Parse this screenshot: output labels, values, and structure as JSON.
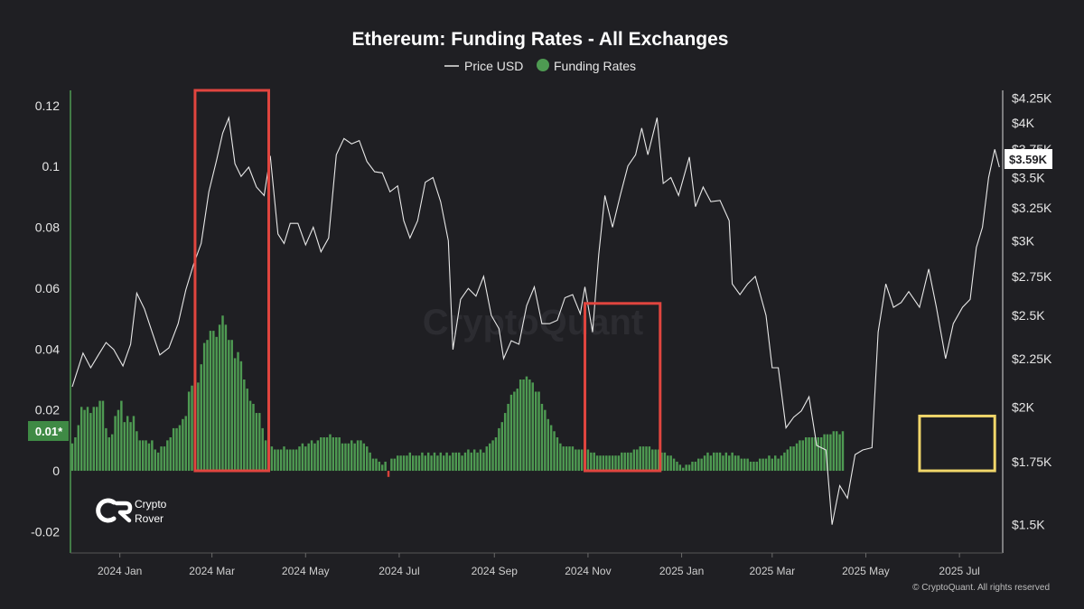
{
  "colors": {
    "background": "#1f1f23",
    "funding_positive": "#4e9a52",
    "funding_negative": "#d9413a",
    "price_line": "#e8e8e8",
    "highlight_red": "#e0453f",
    "highlight_yellow": "#f0d66a",
    "price_badge_bg": "#ffffff",
    "funding_badge_bg": "#3f8a45"
  },
  "brand": {
    "logo_icon": "crypto-rover-logo-icon",
    "line1": "Crypto",
    "line2": "Rover"
  },
  "watermark": "CryptoQuant",
  "copyright": "© CryptoQuant. All rights reserved",
  "badges": {
    "price": "$3.59K",
    "funding": "0.01*"
  },
  "chart_data": {
    "type": "bar",
    "title": "Ethereum: Funding Rates - All Exchanges",
    "legend": [
      {
        "name": "Price USD",
        "kind": "line"
      },
      {
        "name": "Funding Rates",
        "kind": "dot"
      }
    ],
    "legend_position": "top-center",
    "grid": false,
    "x_axis": {
      "type": "date",
      "range": [
        "2023-12-01",
        "2025-07-28"
      ],
      "ticks": [
        {
          "date": "2024-01-01",
          "label": "2024 Jan"
        },
        {
          "date": "2024-03-01",
          "label": "2024 Mar"
        },
        {
          "date": "2024-05-01",
          "label": "2024 May"
        },
        {
          "date": "2024-07-01",
          "label": "2024 Jul"
        },
        {
          "date": "2024-09-01",
          "label": "2024 Sep"
        },
        {
          "date": "2024-11-01",
          "label": "2024 Nov"
        },
        {
          "date": "2025-01-01",
          "label": "2025 Jan"
        },
        {
          "date": "2025-03-01",
          "label": "2025 Mar"
        },
        {
          "date": "2025-05-01",
          "label": "2025 May"
        },
        {
          "date": "2025-07-01",
          "label": "2025 Jul"
        }
      ]
    },
    "y_left": {
      "range": [
        -0.027,
        0.125
      ],
      "ticks": [
        {
          "value": 0.12,
          "label": "0.12"
        },
        {
          "value": 0.1,
          "label": "0.1"
        },
        {
          "value": 0.08,
          "label": "0.08"
        },
        {
          "value": 0.06,
          "label": "0.06"
        },
        {
          "value": 0.04,
          "label": "0.04"
        },
        {
          "value": 0.02,
          "label": "0.02"
        },
        {
          "value": 0,
          "label": "0"
        },
        {
          "value": -0.02,
          "label": "-0.02"
        }
      ]
    },
    "y_right": {
      "scale": "log",
      "range": [
        1400,
        4330
      ],
      "ticks": [
        {
          "value": 4250,
          "label": "$4.25K"
        },
        {
          "value": 4000,
          "label": "$4K"
        },
        {
          "value": 3750,
          "label": "$3.75K"
        },
        {
          "value": 3500,
          "label": "$3.5K"
        },
        {
          "value": 3250,
          "label": "$3.25K"
        },
        {
          "value": 3000,
          "label": "$3K"
        },
        {
          "value": 2750,
          "label": "$2.75K"
        },
        {
          "value": 2500,
          "label": "$2.5K"
        },
        {
          "value": 2250,
          "label": "$2.25K"
        },
        {
          "value": 2000,
          "label": "$2K"
        },
        {
          "value": 1750,
          "label": "$1.75K"
        },
        {
          "value": 1500,
          "label": "$1.5K"
        }
      ]
    },
    "funding_series": {
      "name": "Funding Rates",
      "interval_days": 2,
      "start": "2023-12-01",
      "values": [
        0.009,
        0.011,
        0.015,
        0.021,
        0.02,
        0.021,
        0.019,
        0.021,
        0.021,
        0.023,
        0.023,
        0.014,
        0.011,
        0.012,
        0.018,
        0.02,
        0.023,
        0.016,
        0.018,
        0.016,
        0.018,
        0.013,
        0.01,
        0.01,
        0.01,
        0.009,
        0.01,
        0.007,
        0.006,
        0.008,
        0.008,
        0.01,
        0.011,
        0.014,
        0.014,
        0.015,
        0.017,
        0.018,
        0.026,
        0.028,
        0.029,
        0.029,
        0.035,
        0.042,
        0.043,
        0.046,
        0.046,
        0.044,
        0.048,
        0.051,
        0.048,
        0.043,
        0.043,
        0.037,
        0.039,
        0.036,
        0.03,
        0.027,
        0.023,
        0.022,
        0.019,
        0.019,
        0.014,
        0.01,
        0.01,
        0.008,
        0.007,
        0.007,
        0.007,
        0.008,
        0.007,
        0.007,
        0.007,
        0.007,
        0.008,
        0.009,
        0.008,
        0.009,
        0.01,
        0.009,
        0.01,
        0.011,
        0.011,
        0.011,
        0.012,
        0.011,
        0.011,
        0.011,
        0.009,
        0.009,
        0.009,
        0.01,
        0.009,
        0.01,
        0.01,
        0.009,
        0.008,
        0.006,
        0.004,
        0.004,
        0.003,
        0.002,
        0.003,
        -0.002,
        0.004,
        0.004,
        0.005,
        0.005,
        0.005,
        0.005,
        0.006,
        0.005,
        0.005,
        0.005,
        0.006,
        0.005,
        0.006,
        0.005,
        0.006,
        0.005,
        0.006,
        0.005,
        0.006,
        0.005,
        0.006,
        0.006,
        0.006,
        0.005,
        0.006,
        0.007,
        0.006,
        0.007,
        0.006,
        0.007,
        0.006,
        0.008,
        0.009,
        0.01,
        0.011,
        0.014,
        0.016,
        0.019,
        0.022,
        0.025,
        0.026,
        0.027,
        0.03,
        0.03,
        0.031,
        0.03,
        0.029,
        0.026,
        0.026,
        0.022,
        0.02,
        0.017,
        0.015,
        0.013,
        0.011,
        0.009,
        0.008,
        0.008,
        0.008,
        0.008,
        0.007,
        0.007,
        0.007,
        0.007,
        0.007,
        0.006,
        0.006,
        0.005,
        0.005,
        0.005,
        0.005,
        0.005,
        0.005,
        0.005,
        0.005,
        0.006,
        0.006,
        0.006,
        0.006,
        0.007,
        0.007,
        0.008,
        0.008,
        0.008,
        0.008,
        0.007,
        0.007,
        0.007,
        0.006,
        0.006,
        0.005,
        0.005,
        0.004,
        0.003,
        0.002,
        0.001,
        0.002,
        0.002,
        0.003,
        0.003,
        0.004,
        0.004,
        0.005,
        0.006,
        0.005,
        0.006,
        0.006,
        0.006,
        0.005,
        0.006,
        0.005,
        0.006,
        0.005,
        0.005,
        0.004,
        0.004,
        0.004,
        0.003,
        0.003,
        0.003,
        0.004,
        0.004,
        0.004,
        0.005,
        0.004,
        0.005,
        0.004,
        0.005,
        0.006,
        0.007,
        0.008,
        0.008,
        0.009,
        0.01,
        0.01,
        0.011,
        0.011,
        0.011,
        0.011,
        0.011,
        0.011,
        0.012,
        0.012,
        0.012,
        0.013,
        0.013,
        0.012,
        0.013
      ]
    },
    "price_series": {
      "name": "Price USD",
      "points": [
        {
          "x": "2023-12-01",
          "y": 2100
        },
        {
          "x": "2023-12-08",
          "y": 2280
        },
        {
          "x": "2023-12-13",
          "y": 2200
        },
        {
          "x": "2023-12-18",
          "y": 2270
        },
        {
          "x": "2023-12-23",
          "y": 2340
        },
        {
          "x": "2023-12-28",
          "y": 2300
        },
        {
          "x": "2024-01-03",
          "y": 2210
        },
        {
          "x": "2024-01-08",
          "y": 2330
        },
        {
          "x": "2024-01-12",
          "y": 2640
        },
        {
          "x": "2024-01-17",
          "y": 2540
        },
        {
          "x": "2024-01-22",
          "y": 2400
        },
        {
          "x": "2024-01-27",
          "y": 2270
        },
        {
          "x": "2024-02-02",
          "y": 2310
        },
        {
          "x": "2024-02-08",
          "y": 2450
        },
        {
          "x": "2024-02-13",
          "y": 2660
        },
        {
          "x": "2024-02-18",
          "y": 2830
        },
        {
          "x": "2024-02-23",
          "y": 2980
        },
        {
          "x": "2024-02-28",
          "y": 3380
        },
        {
          "x": "2024-03-04",
          "y": 3650
        },
        {
          "x": "2024-03-08",
          "y": 3900
        },
        {
          "x": "2024-03-12",
          "y": 4050
        },
        {
          "x": "2024-03-16",
          "y": 3620
        },
        {
          "x": "2024-03-20",
          "y": 3510
        },
        {
          "x": "2024-03-25",
          "y": 3590
        },
        {
          "x": "2024-03-30",
          "y": 3420
        },
        {
          "x": "2024-04-04",
          "y": 3350
        },
        {
          "x": "2024-04-08",
          "y": 3690
        },
        {
          "x": "2024-04-13",
          "y": 3050
        },
        {
          "x": "2024-04-17",
          "y": 2980
        },
        {
          "x": "2024-04-21",
          "y": 3130
        },
        {
          "x": "2024-04-26",
          "y": 3130
        },
        {
          "x": "2024-05-01",
          "y": 2970
        },
        {
          "x": "2024-05-06",
          "y": 3100
        },
        {
          "x": "2024-05-11",
          "y": 2920
        },
        {
          "x": "2024-05-16",
          "y": 3020
        },
        {
          "x": "2024-05-21",
          "y": 3700
        },
        {
          "x": "2024-05-26",
          "y": 3850
        },
        {
          "x": "2024-05-31",
          "y": 3800
        },
        {
          "x": "2024-06-05",
          "y": 3830
        },
        {
          "x": "2024-06-10",
          "y": 3640
        },
        {
          "x": "2024-06-15",
          "y": 3550
        },
        {
          "x": "2024-06-20",
          "y": 3540
        },
        {
          "x": "2024-06-25",
          "y": 3380
        },
        {
          "x": "2024-06-30",
          "y": 3430
        },
        {
          "x": "2024-07-04",
          "y": 3150
        },
        {
          "x": "2024-07-08",
          "y": 3020
        },
        {
          "x": "2024-07-13",
          "y": 3150
        },
        {
          "x": "2024-07-18",
          "y": 3460
        },
        {
          "x": "2024-07-23",
          "y": 3500
        },
        {
          "x": "2024-07-28",
          "y": 3300
        },
        {
          "x": "2024-08-02",
          "y": 3000
        },
        {
          "x": "2024-08-05",
          "y": 2300
        },
        {
          "x": "2024-08-10",
          "y": 2600
        },
        {
          "x": "2024-08-15",
          "y": 2670
        },
        {
          "x": "2024-08-20",
          "y": 2620
        },
        {
          "x": "2024-08-25",
          "y": 2750
        },
        {
          "x": "2024-08-30",
          "y": 2500
        },
        {
          "x": "2024-09-04",
          "y": 2420
        },
        {
          "x": "2024-09-07",
          "y": 2250
        },
        {
          "x": "2024-09-12",
          "y": 2350
        },
        {
          "x": "2024-09-17",
          "y": 2330
        },
        {
          "x": "2024-09-22",
          "y": 2560
        },
        {
          "x": "2024-09-27",
          "y": 2680
        },
        {
          "x": "2024-10-02",
          "y": 2450
        },
        {
          "x": "2024-10-07",
          "y": 2450
        },
        {
          "x": "2024-10-12",
          "y": 2470
        },
        {
          "x": "2024-10-17",
          "y": 2610
        },
        {
          "x": "2024-10-22",
          "y": 2630
        },
        {
          "x": "2024-10-27",
          "y": 2510
        },
        {
          "x": "2024-10-30",
          "y": 2680
        },
        {
          "x": "2024-11-04",
          "y": 2400
        },
        {
          "x": "2024-11-08",
          "y": 2900
        },
        {
          "x": "2024-11-12",
          "y": 3350
        },
        {
          "x": "2024-11-17",
          "y": 3100
        },
        {
          "x": "2024-11-22",
          "y": 3350
        },
        {
          "x": "2024-11-27",
          "y": 3600
        },
        {
          "x": "2024-12-02",
          "y": 3700
        },
        {
          "x": "2024-12-06",
          "y": 3950
        },
        {
          "x": "2024-12-10",
          "y": 3700
        },
        {
          "x": "2024-12-16",
          "y": 4050
        },
        {
          "x": "2024-12-20",
          "y": 3450
        },
        {
          "x": "2024-12-25",
          "y": 3500
        },
        {
          "x": "2024-12-30",
          "y": 3350
        },
        {
          "x": "2025-01-06",
          "y": 3680
        },
        {
          "x": "2025-01-10",
          "y": 3260
        },
        {
          "x": "2025-01-15",
          "y": 3420
        },
        {
          "x": "2025-01-20",
          "y": 3300
        },
        {
          "x": "2025-01-26",
          "y": 3310
        },
        {
          "x": "2025-02-01",
          "y": 3150
        },
        {
          "x": "2025-02-03",
          "y": 2700
        },
        {
          "x": "2025-02-08",
          "y": 2630
        },
        {
          "x": "2025-02-13",
          "y": 2700
        },
        {
          "x": "2025-02-18",
          "y": 2750
        },
        {
          "x": "2025-02-25",
          "y": 2500
        },
        {
          "x": "2025-03-01",
          "y": 2200
        },
        {
          "x": "2025-03-05",
          "y": 2200
        },
        {
          "x": "2025-03-10",
          "y": 1900
        },
        {
          "x": "2025-03-15",
          "y": 1950
        },
        {
          "x": "2025-03-20",
          "y": 1980
        },
        {
          "x": "2025-03-25",
          "y": 2050
        },
        {
          "x": "2025-03-30",
          "y": 1820
        },
        {
          "x": "2025-04-05",
          "y": 1800
        },
        {
          "x": "2025-04-09",
          "y": 1500
        },
        {
          "x": "2025-04-14",
          "y": 1650
        },
        {
          "x": "2025-04-19",
          "y": 1600
        },
        {
          "x": "2025-04-24",
          "y": 1780
        },
        {
          "x": "2025-04-29",
          "y": 1800
        },
        {
          "x": "2025-05-05",
          "y": 1810
        },
        {
          "x": "2025-05-09",
          "y": 2400
        },
        {
          "x": "2025-05-14",
          "y": 2700
        },
        {
          "x": "2025-05-19",
          "y": 2550
        },
        {
          "x": "2025-05-24",
          "y": 2580
        },
        {
          "x": "2025-05-29",
          "y": 2650
        },
        {
          "x": "2025-06-05",
          "y": 2550
        },
        {
          "x": "2025-06-11",
          "y": 2800
        },
        {
          "x": "2025-06-16",
          "y": 2550
        },
        {
          "x": "2025-06-22",
          "y": 2250
        },
        {
          "x": "2025-06-27",
          "y": 2450
        },
        {
          "x": "2025-07-03",
          "y": 2550
        },
        {
          "x": "2025-07-08",
          "y": 2600
        },
        {
          "x": "2025-07-12",
          "y": 2950
        },
        {
          "x": "2025-07-16",
          "y": 3100
        },
        {
          "x": "2025-07-20",
          "y": 3500
        },
        {
          "x": "2025-07-24",
          "y": 3750
        },
        {
          "x": "2025-07-27",
          "y": 3590
        }
      ]
    },
    "highlights": [
      {
        "color": "red",
        "x_from": "2024-02-19",
        "x_to": "2024-04-07",
        "y_from": 0,
        "y_to": 0.125
      },
      {
        "color": "red",
        "x_from": "2024-10-30",
        "x_to": "2024-12-18",
        "y_from": 0,
        "y_to": 0.055
      },
      {
        "color": "yellow",
        "x_from": "2025-06-05",
        "x_to": "2025-07-24",
        "y_from": 0,
        "y_to": 0.018
      }
    ]
  }
}
